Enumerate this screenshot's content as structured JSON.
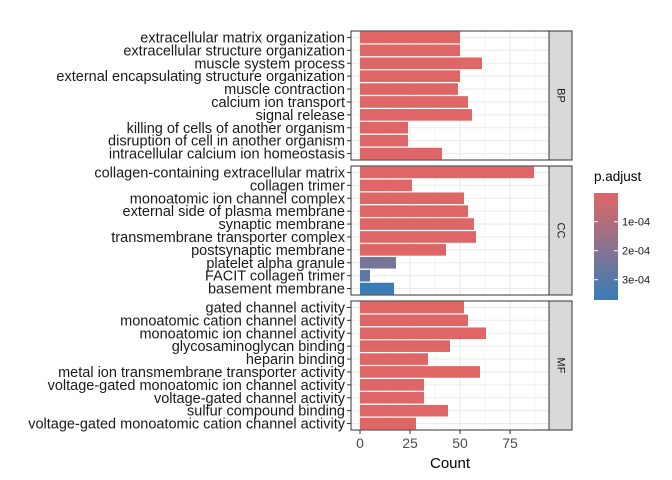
{
  "chart_data": {
    "type": "bar",
    "orientation": "horizontal",
    "xlabel": "Count",
    "x_ticks": [
      0,
      25,
      50,
      75
    ],
    "xlim": [
      -4.5,
      94.5
    ],
    "panels": [
      {
        "name": "BP",
        "categories": [
          "extracellular matrix organization",
          "extracellular structure organization",
          "muscle system process",
          "external encapsulating structure organization",
          "muscle contraction",
          "calcium ion transport",
          "signal release",
          "killing of cells of another organism",
          "disruption of cell in another organism",
          "intracellular calcium ion homeostasis"
        ],
        "values": [
          50,
          50,
          61,
          50,
          49,
          54,
          56,
          24,
          24,
          41
        ],
        "p_adjust": [
          2e-06,
          2e-06,
          3e-06,
          2e-06,
          3e-06,
          4e-06,
          5e-06,
          6e-06,
          6e-06,
          8e-06
        ]
      },
      {
        "name": "CC",
        "categories": [
          "collagen-containing extracellular matrix",
          "collagen trimer",
          "monoatomic ion channel complex",
          "external side of plasma membrane",
          "synaptic membrane",
          "transmembrane transporter complex",
          "postsynaptic membrane",
          "platelet alpha granule",
          "FACIT collagen trimer",
          "basement membrane"
        ],
        "values": [
          87,
          26,
          52,
          54,
          57,
          58,
          43,
          18,
          5,
          17
        ],
        "p_adjust": [
          1e-06,
          4e-06,
          3e-06,
          3e-06,
          3e-06,
          3e-06,
          6e-06,
          0.00023,
          0.00029,
          0.00037
        ]
      },
      {
        "name": "MF",
        "categories": [
          "gated channel activity",
          "monoatomic cation channel activity",
          "monoatomic ion channel activity",
          "glycosaminoglycan binding",
          "heparin binding",
          "metal ion transmembrane transporter activity",
          "voltage-gated monoatomic ion channel activity",
          "voltage-gated channel activity",
          "sulfur compound binding",
          "voltage-gated monoatomic cation channel activity"
        ],
        "values": [
          52,
          54,
          63,
          45,
          34,
          60,
          32,
          32,
          44,
          28
        ],
        "p_adjust": [
          2e-06,
          2e-06,
          1e-06,
          3e-06,
          4e-06,
          2e-06,
          5e-06,
          5e-06,
          6e-06,
          7e-06
        ]
      }
    ],
    "legend": {
      "title": "p.adjust",
      "position": "right",
      "labels": [
        "1e-04",
        "2e-04",
        "3e-04"
      ],
      "label_values": [
        0.0001,
        0.0002,
        0.0003
      ],
      "range": [
        1e-06,
        0.00037
      ],
      "color_low": "#e06666",
      "color_high": "#377eb8"
    },
    "grid": true,
    "strip_fill": "#d9d9d9",
    "panel_border": "#333333"
  }
}
